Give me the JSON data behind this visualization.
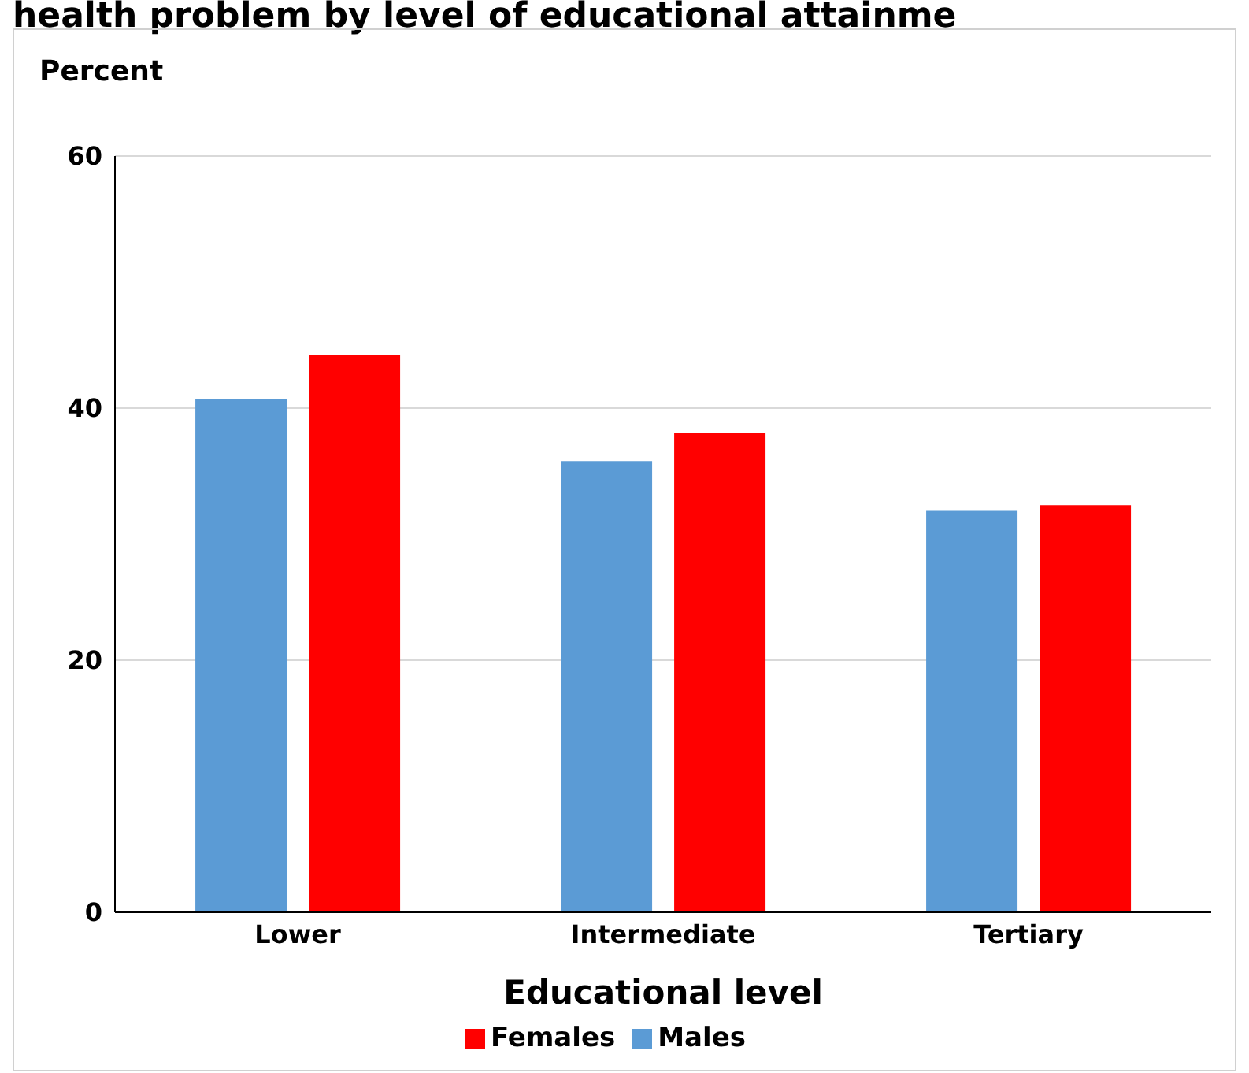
{
  "chart_data": {
    "type": "bar",
    "title": "health problem by level of educational attainme",
    "ylabel": "Percent",
    "xlabel": "Educational level",
    "categories": [
      "Lower",
      "Intermediate",
      "Tertiary"
    ],
    "series": [
      {
        "name": "Males",
        "color": "#5b9bd5",
        "values": [
          40.7,
          35.8,
          31.9
        ]
      },
      {
        "name": "Females",
        "color": "#ff0000",
        "values": [
          44.2,
          38.0,
          32.3
        ]
      }
    ],
    "ylim": [
      0,
      60
    ],
    "yticks": [
      0,
      20,
      40,
      60
    ],
    "grid": "y",
    "legend": "bottom"
  }
}
